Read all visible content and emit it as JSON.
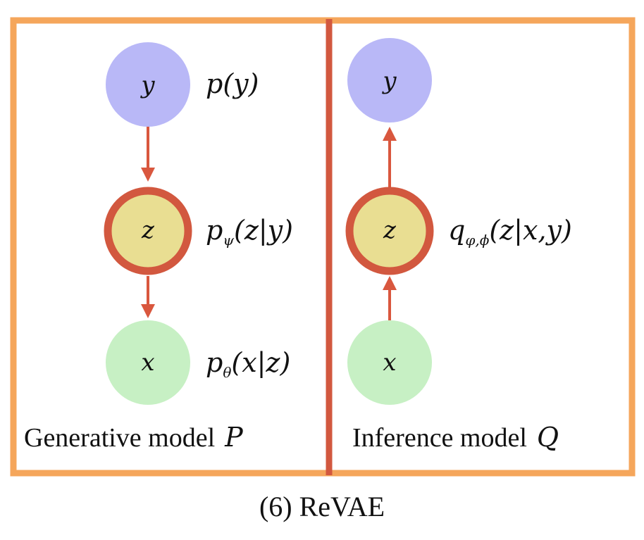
{
  "colors": {
    "frame": "#F5A65B",
    "divider": "#D2583F",
    "arrow": "#D9573E",
    "node_y": "#B9B8F7",
    "node_z": "#E9DE92",
    "node_z_ring": "#D2583F",
    "node_x": "#C7F0C4"
  },
  "generative": {
    "caption_text": "Generative model",
    "caption_symbol": "P",
    "nodes": {
      "y": {
        "label": "y",
        "dist": "p(y)"
      },
      "z": {
        "label": "z",
        "dist_base": "p",
        "dist_sub": "ψ",
        "dist_args": "(z|y)"
      },
      "x": {
        "label": "x",
        "dist_base": "p",
        "dist_sub": "θ",
        "dist_args": "(x|z)"
      }
    }
  },
  "inference": {
    "caption_text": "Inference model",
    "caption_symbol": "Q",
    "nodes": {
      "y": {
        "label": "y"
      },
      "z": {
        "label": "z",
        "dist_base": "q",
        "dist_sub": "φ,ϕ",
        "dist_args": "(z|x,y)"
      },
      "x": {
        "label": "x"
      }
    }
  },
  "caption": "(6) ReVAE"
}
